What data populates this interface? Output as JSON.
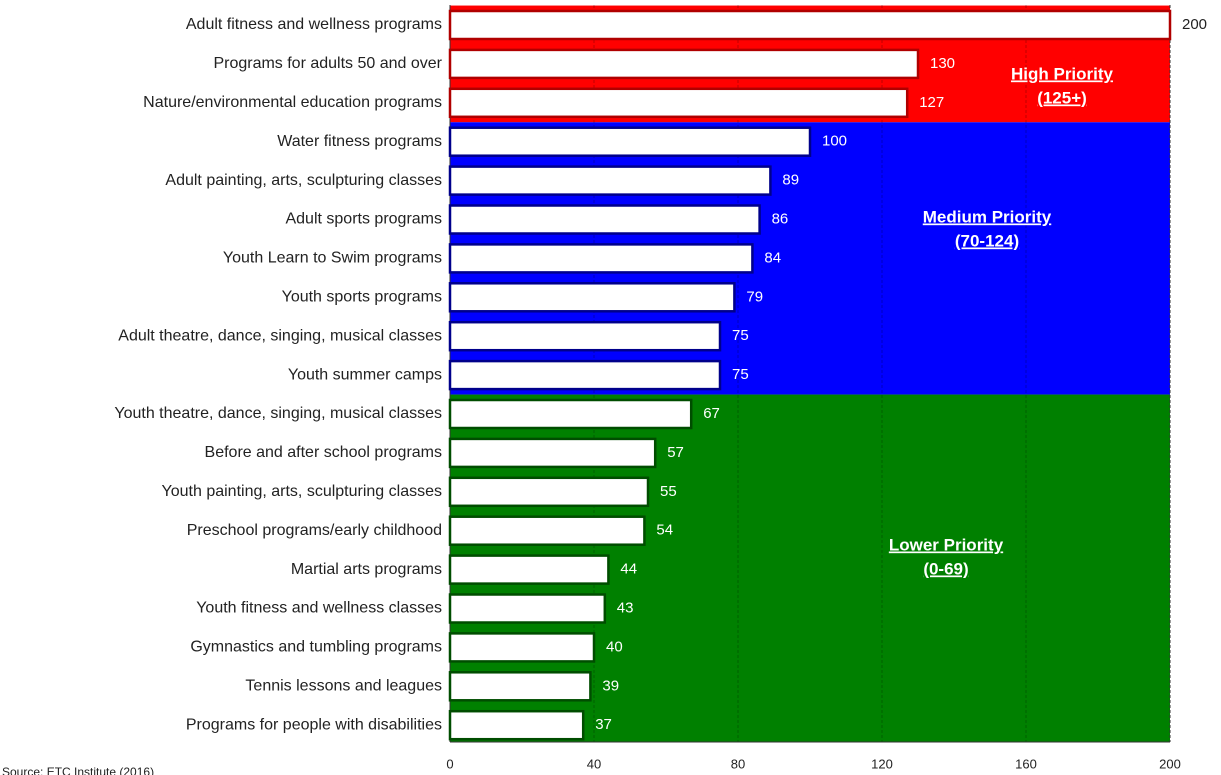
{
  "chart_data": {
    "type": "bar",
    "orientation": "horizontal",
    "categories": [
      "Adult fitness and wellness programs",
      "Programs for adults 50 and over",
      "Nature/environmental education programs",
      "Water fitness programs",
      "Adult painting, arts, sculpturing classes",
      "Adult sports programs",
      "Youth Learn to Swim programs",
      "Youth sports programs",
      "Adult theatre, dance, singing, musical classes",
      "Youth summer camps",
      "Youth theatre, dance, singing, musical classes",
      "Before and after school programs",
      "Youth painting, arts, sculpturing classes",
      "Preschool programs/early childhood",
      "Martial arts programs",
      "Youth fitness and wellness classes",
      "Gymnastics and tumbling programs",
      "Tennis lessons and leagues",
      "Programs for people with disabilities"
    ],
    "values": [
      200,
      130,
      127,
      100,
      89,
      86,
      84,
      79,
      75,
      75,
      67,
      57,
      55,
      54,
      44,
      43,
      40,
      39,
      37
    ],
    "color": "#ffffff",
    "xlim": [
      0,
      200
    ],
    "xticks": [
      0,
      40,
      80,
      120,
      160,
      200
    ],
    "grid": true,
    "zones": [
      {
        "lines": [
          "High Priority",
          "(125+)"
        ],
        "color": "#ff0000",
        "border": "#b00000"
      },
      {
        "lines": [
          "Medium Priority",
          "(70-124)"
        ],
        "color": "#0000ff",
        "border": "#00008b"
      },
      {
        "lines": [
          "Lower Priority",
          "(0-69)"
        ],
        "color": "#008000",
        "border": "#004d00"
      }
    ],
    "source": "Source: ETC Institute (2016)"
  }
}
